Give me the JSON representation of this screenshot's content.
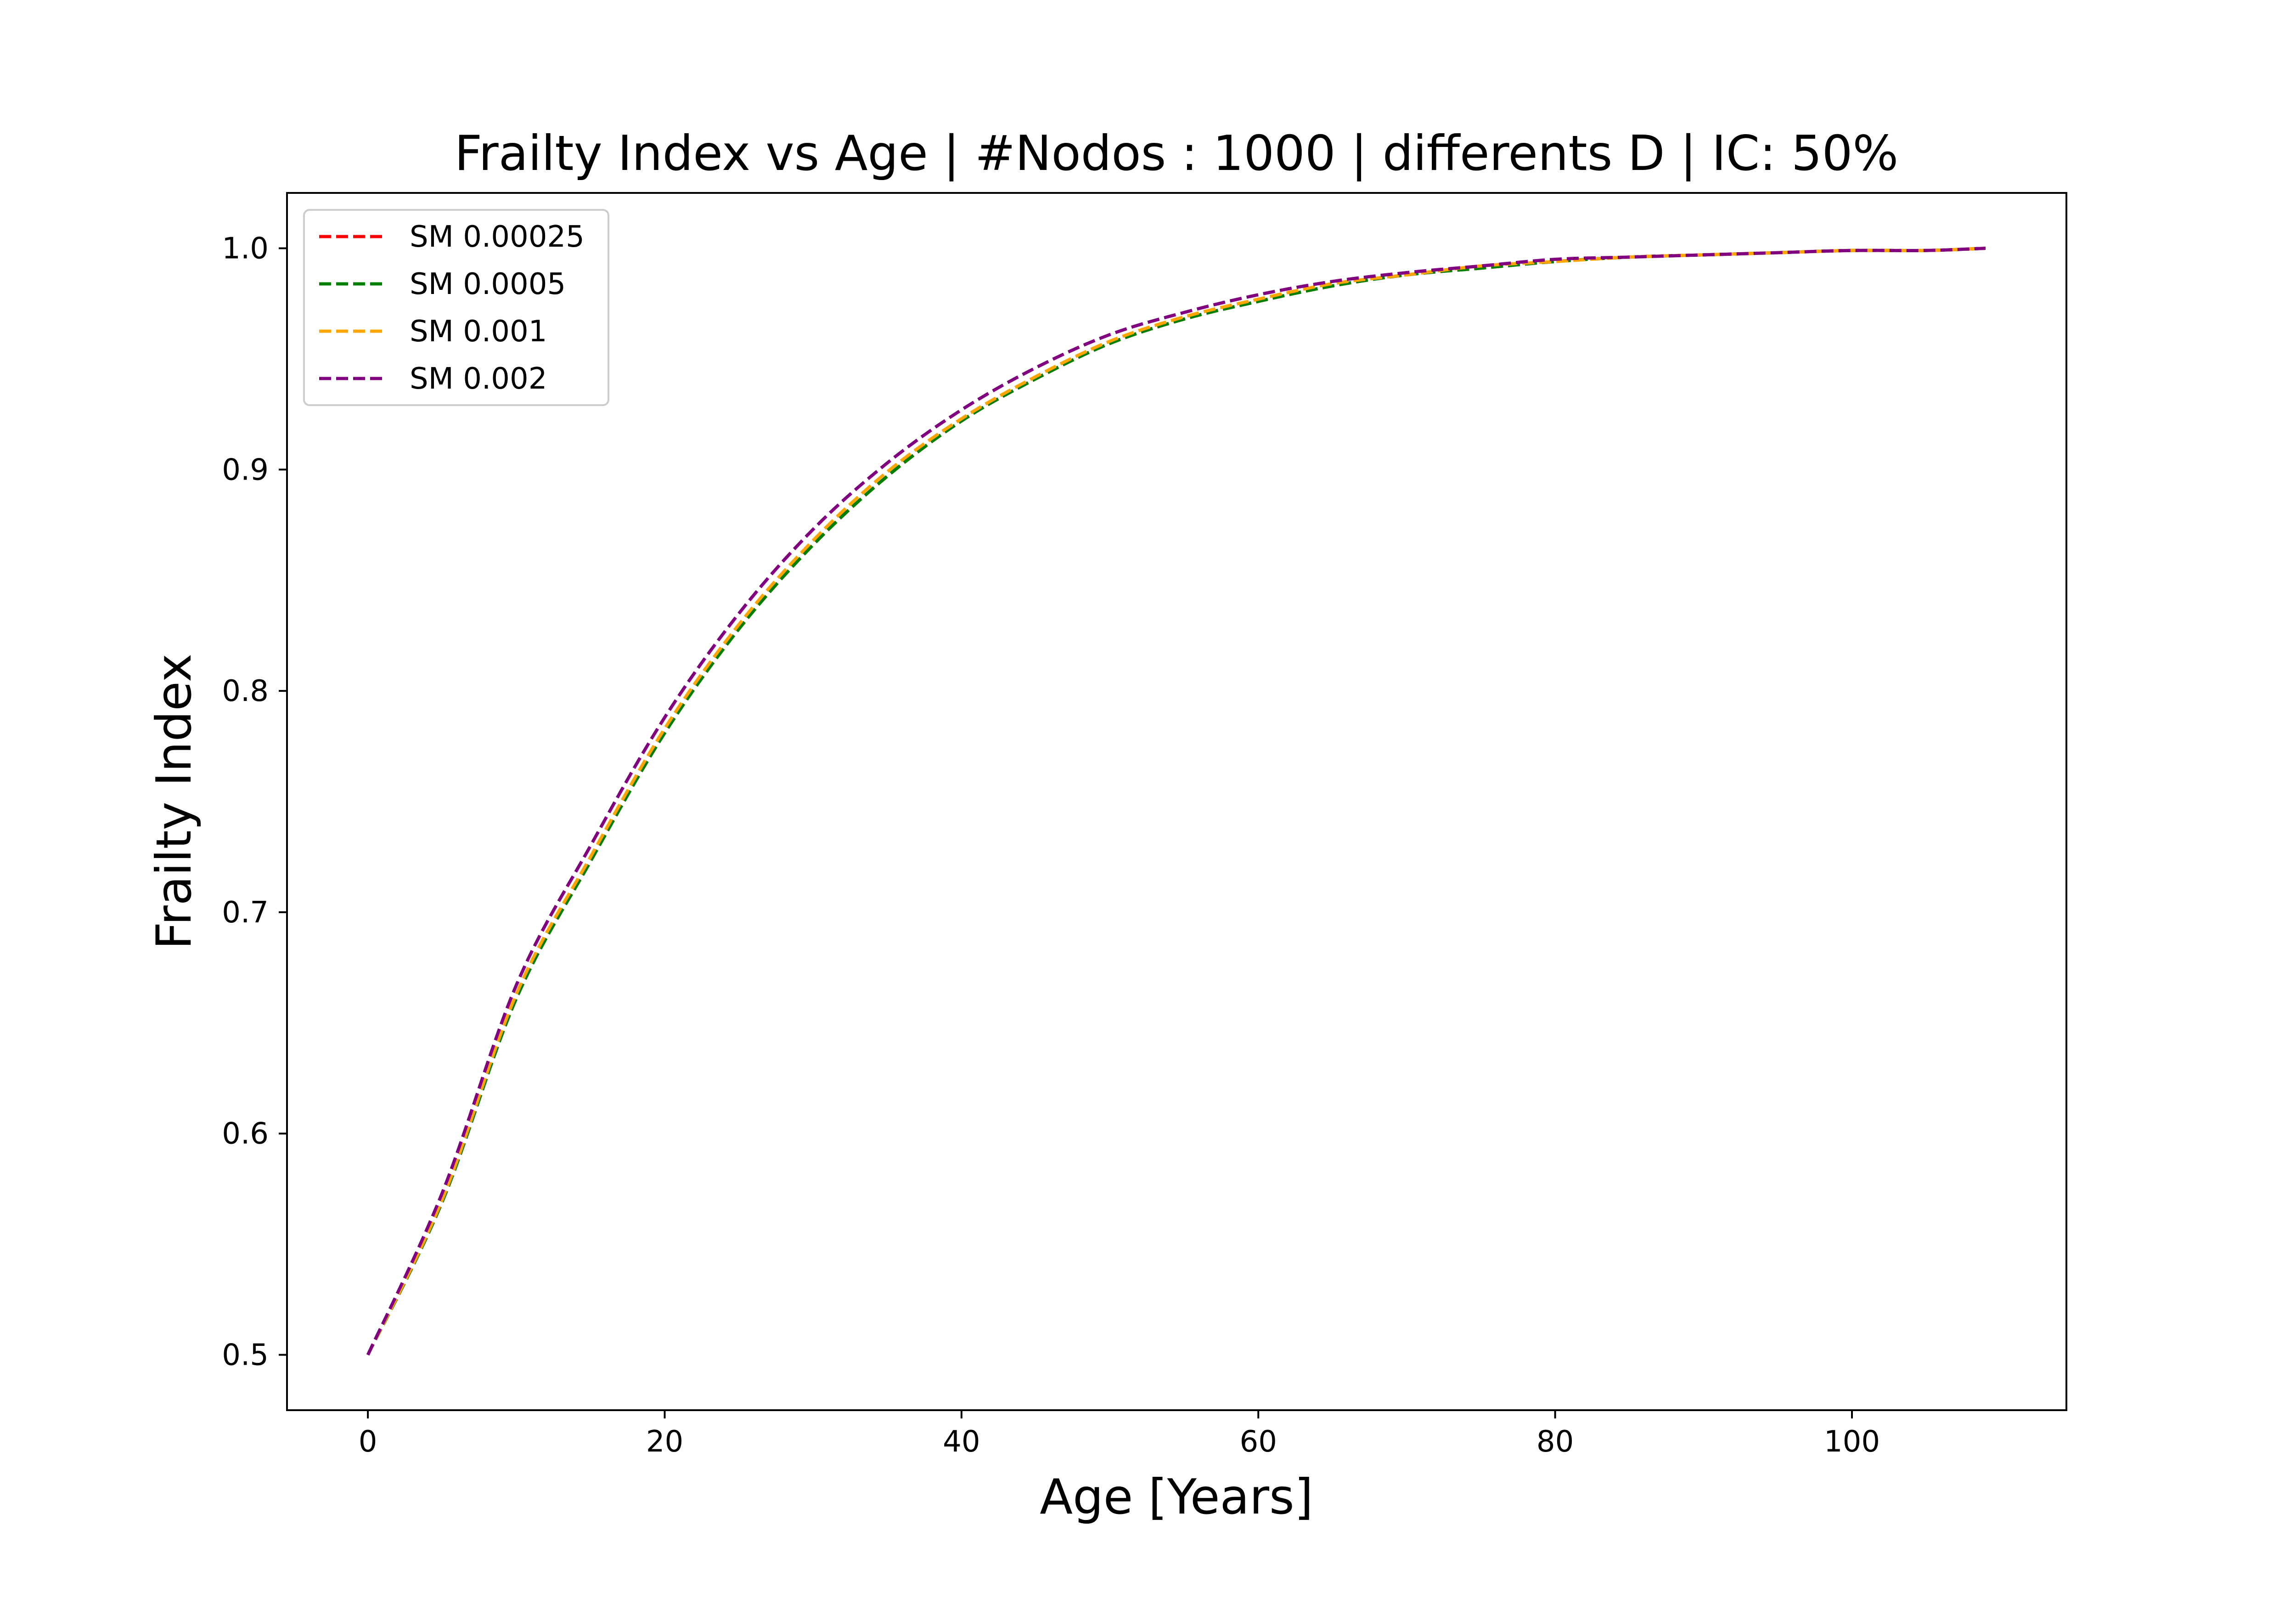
{
  "chart_data": {
    "type": "line",
    "title": "Frailty Index vs Age | #Nodos : 1000 | differents D | IC: 50%",
    "xlabel": "Age [Years]",
    "ylabel": "Frailty Index",
    "xlim": [
      -5.45,
      114.45
    ],
    "ylim": [
      0.475,
      1.025
    ],
    "xticks": [
      0,
      20,
      40,
      60,
      80,
      100
    ],
    "yticks": [
      0.5,
      0.6,
      0.7,
      0.8,
      0.9,
      1.0
    ],
    "xtick_labels": [
      "0",
      "20",
      "40",
      "60",
      "80",
      "100"
    ],
    "ytick_labels": [
      "0.5",
      "0.6",
      "0.7",
      "0.8",
      "0.9",
      "1.0"
    ],
    "grid": false,
    "legend_position": "top-left",
    "line_style": "dashed",
    "x": [
      0,
      5,
      10,
      15,
      20,
      25,
      30,
      35,
      40,
      45,
      50,
      55,
      60,
      65,
      70,
      75,
      80,
      85,
      90,
      95,
      100,
      105,
      109
    ],
    "series": [
      {
        "name": "SM 0.00025",
        "color": "#ff0000",
        "values": [
          0.5,
          0.569,
          0.661,
          0.723,
          0.781,
          0.828,
          0.866,
          0.897,
          0.922,
          0.941,
          0.957,
          0.968,
          0.976,
          0.983,
          0.988,
          0.991,
          0.994,
          0.996,
          0.997,
          0.998,
          0.999,
          0.999,
          1.0
        ]
      },
      {
        "name": "SM 0.0005",
        "color": "#008000",
        "values": [
          0.5,
          0.569,
          0.661,
          0.723,
          0.781,
          0.828,
          0.866,
          0.897,
          0.922,
          0.941,
          0.957,
          0.968,
          0.976,
          0.983,
          0.988,
          0.991,
          0.994,
          0.996,
          0.997,
          0.998,
          0.999,
          0.999,
          1.0
        ]
      },
      {
        "name": "SM 0.001",
        "color": "#ffa500",
        "values": [
          0.5,
          0.57,
          0.663,
          0.725,
          0.783,
          0.83,
          0.868,
          0.899,
          0.923,
          0.942,
          0.958,
          0.969,
          0.977,
          0.984,
          0.988,
          0.992,
          0.994,
          0.996,
          0.997,
          0.998,
          0.999,
          0.999,
          1.0
        ]
      },
      {
        "name": "SM 0.002",
        "color": "#800080",
        "values": [
          0.5,
          0.573,
          0.667,
          0.73,
          0.788,
          0.835,
          0.873,
          0.903,
          0.927,
          0.946,
          0.961,
          0.971,
          0.979,
          0.985,
          0.989,
          0.992,
          0.995,
          0.996,
          0.997,
          0.998,
          0.999,
          0.999,
          1.0
        ]
      }
    ]
  }
}
